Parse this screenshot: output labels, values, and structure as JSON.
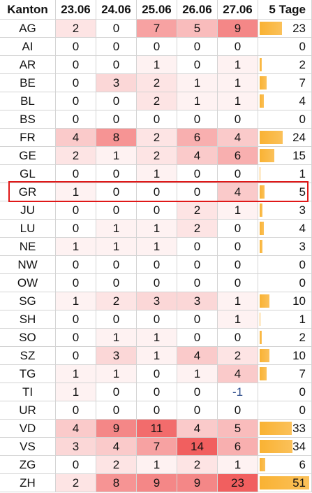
{
  "table": {
    "header": [
      "Kanton",
      "23.06",
      "24.06",
      "25.06",
      "26.06",
      "27.06",
      "5 Tage"
    ],
    "rows": [
      [
        "AG",
        2,
        0,
        7,
        5,
        9,
        23
      ],
      [
        "AI",
        0,
        0,
        0,
        0,
        0,
        0
      ],
      [
        "AR",
        0,
        0,
        1,
        0,
        1,
        2
      ],
      [
        "BE",
        0,
        3,
        2,
        1,
        1,
        7
      ],
      [
        "BL",
        0,
        0,
        2,
        1,
        1,
        4
      ],
      [
        "BS",
        0,
        0,
        0,
        0,
        0,
        0
      ],
      [
        "FR",
        4,
        8,
        2,
        6,
        4,
        24
      ],
      [
        "GE",
        2,
        1,
        2,
        4,
        6,
        15
      ],
      [
        "GL",
        0,
        0,
        1,
        0,
        0,
        1
      ],
      [
        "GR",
        1,
        0,
        0,
        0,
        4,
        5
      ],
      [
        "JU",
        0,
        0,
        0,
        2,
        1,
        3
      ],
      [
        "LU",
        0,
        1,
        1,
        2,
        0,
        4
      ],
      [
        "NE",
        1,
        1,
        1,
        0,
        0,
        3
      ],
      [
        "NW",
        0,
        0,
        0,
        0,
        0,
        0
      ],
      [
        "OW",
        0,
        0,
        0,
        0,
        0,
        0
      ],
      [
        "SG",
        1,
        2,
        3,
        3,
        1,
        10
      ],
      [
        "SH",
        0,
        0,
        0,
        0,
        1,
        1
      ],
      [
        "SO",
        0,
        1,
        1,
        0,
        0,
        2
      ],
      [
        "SZ",
        0,
        3,
        1,
        4,
        2,
        10
      ],
      [
        "TG",
        1,
        1,
        0,
        1,
        4,
        7
      ],
      [
        "TI",
        1,
        0,
        0,
        0,
        -1,
        0
      ],
      [
        "UR",
        0,
        0,
        0,
        0,
        0,
        0
      ],
      [
        "VD",
        4,
        9,
        11,
        4,
        5,
        33
      ],
      [
        "VS",
        3,
        4,
        7,
        14,
        6,
        34
      ],
      [
        "ZG",
        0,
        2,
        1,
        2,
        1,
        6
      ],
      [
        "ZH",
        2,
        8,
        9,
        9,
        23,
        51
      ]
    ]
  }
}
